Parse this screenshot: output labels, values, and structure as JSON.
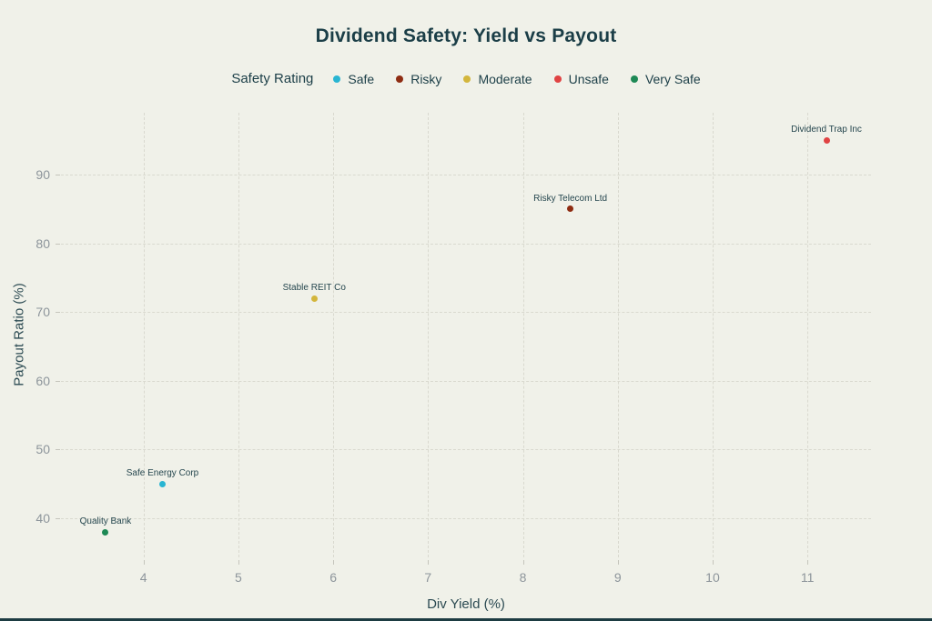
{
  "page": {
    "background_color": "#f0f1e9",
    "accent_bar_color": "#1d3c42",
    "text_color": "#1b3e47",
    "tick_color": "#8d959b",
    "gridline_color": "#d9d9cf"
  },
  "chart_data": {
    "type": "scatter",
    "title": "Dividend Safety: Yield vs Payout",
    "xlabel": "Div Yield (%)",
    "ylabel": "Payout Ratio (%)",
    "xlim": [
      3.13,
      11.67
    ],
    "ylim": [
      34.3,
      99.0
    ],
    "x_ticks": [
      4,
      5,
      6,
      7,
      8,
      9,
      10,
      11
    ],
    "y_ticks": [
      40,
      50,
      60,
      70,
      80,
      90
    ],
    "grid": true,
    "legend_title": "Safety Rating",
    "legend_position": "top-center",
    "series": [
      {
        "name": "Safe",
        "color": "#29b5d2",
        "points": [
          {
            "label": "Safe Energy Corp",
            "x": 4.2,
            "y": 45
          }
        ]
      },
      {
        "name": "Risky",
        "color": "#8e2c12",
        "points": [
          {
            "label": "Risky Telecom Ltd",
            "x": 8.5,
            "y": 85
          }
        ]
      },
      {
        "name": "Moderate",
        "color": "#d3b63c",
        "points": [
          {
            "label": "Stable REIT Co",
            "x": 5.8,
            "y": 72
          }
        ]
      },
      {
        "name": "Unsafe",
        "color": "#e04343",
        "points": [
          {
            "label": "Dividend Trap Inc",
            "x": 11.2,
            "y": 95
          }
        ]
      },
      {
        "name": "Very Safe",
        "color": "#1e8955",
        "points": [
          {
            "label": "Quality Bank",
            "x": 3.6,
            "y": 38
          }
        ]
      }
    ]
  }
}
